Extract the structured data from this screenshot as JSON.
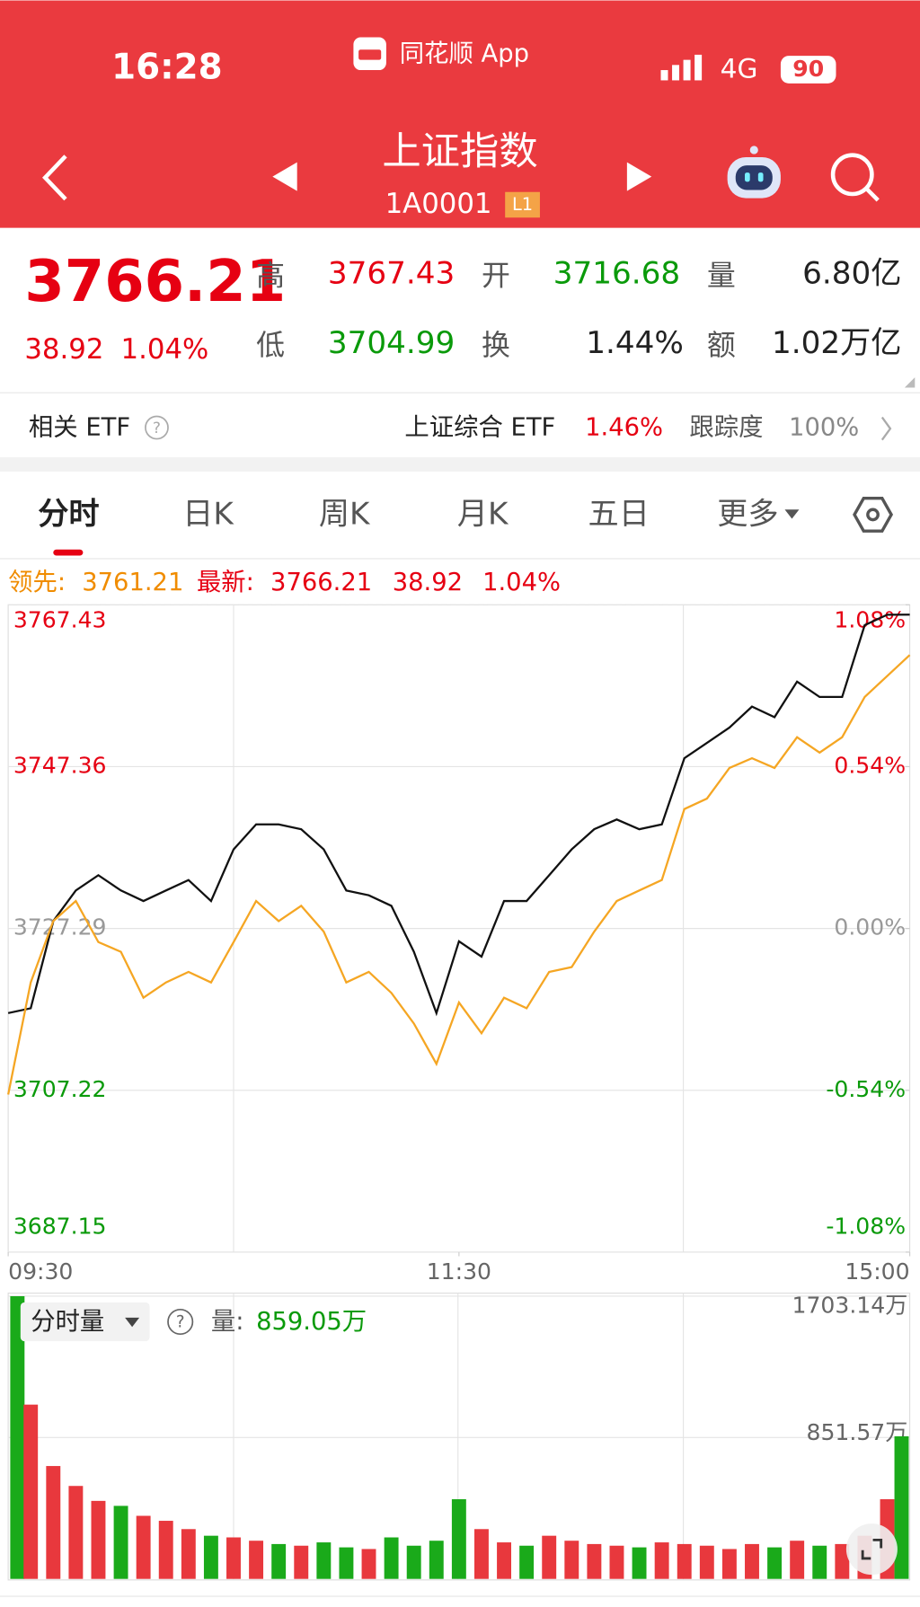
{
  "status_bar": {
    "time": "16:28",
    "app": "同花顺 App",
    "network": "4G",
    "battery": "90"
  },
  "header": {
    "title": "上证指数",
    "code": "1A0001",
    "badge": "L1"
  },
  "quote": {
    "price": "3766.21",
    "change": "38.92",
    "change_pct": "1.04%",
    "stats": [
      {
        "label": "高",
        "value": "3767.43"
      },
      {
        "label": "开",
        "value": "3716.68"
      },
      {
        "label": "量",
        "value": "6.80亿"
      },
      {
        "label": "低",
        "value": "3704.99"
      },
      {
        "label": "换",
        "value": "1.44%"
      },
      {
        "label": "额",
        "value": "1.02万亿"
      }
    ]
  },
  "etf": {
    "label": "相关 ETF",
    "name": "上证综合 ETF",
    "change_pct": "1.46%",
    "tracking_label": "跟踪度",
    "tracking_value": "100%"
  },
  "tabs": [
    "分时",
    "日K",
    "周K",
    "月K",
    "五日",
    "更多"
  ],
  "legend": {
    "lead_label": "领先:",
    "lead_value": "3761.21",
    "latest_label": "最新:",
    "latest_value": "3766.21",
    "change": "38.92",
    "change_pct": "1.04%"
  },
  "volume_header": {
    "selector": "分时量",
    "label": "量:",
    "value": "859.05万"
  },
  "chart_data": [
    {
      "type": "line",
      "x": [
        0,
        6,
        12,
        18,
        24,
        30,
        36,
        42,
        48,
        54,
        60,
        66,
        72,
        78,
        84,
        90,
        96,
        102,
        108,
        114,
        120,
        126,
        132,
        138,
        144,
        150,
        156,
        162,
        168,
        174,
        180,
        186,
        192,
        198,
        204,
        210,
        216,
        222,
        228,
        234,
        240
      ],
      "xlim": [
        0,
        240
      ],
      "xticks": [
        {
          "value": 0,
          "label": "09:30"
        },
        {
          "value": 120,
          "label": "11:30"
        },
        {
          "value": 240,
          "label": "15:00"
        }
      ],
      "ylim": [
        3687.15,
        3767.43
      ],
      "yticks": [
        3687.15,
        3707.22,
        3727.29,
        3747.36,
        3767.43
      ],
      "y2lim": [
        -1.08,
        1.08
      ],
      "y2ticks": [
        {
          "value": -1.08,
          "label": "-1.08%"
        },
        {
          "value": -0.54,
          "label": "-0.54%"
        },
        {
          "value": 0,
          "label": "0.00%"
        },
        {
          "value": 0.54,
          "label": "0.54%"
        },
        {
          "value": 1.08,
          "label": "1.08%"
        }
      ],
      "grid": true,
      "series": [
        {
          "color": "#111111",
          "values": [
            3716.8,
            3717.4,
            3728.2,
            3732.0,
            3733.9,
            3732.0,
            3730.7,
            3732.0,
            3733.3,
            3730.7,
            3737.1,
            3740.2,
            3740.2,
            3739.6,
            3737.1,
            3732.0,
            3731.4,
            3730.1,
            3724.4,
            3716.8,
            3725.7,
            3723.8,
            3730.7,
            3730.7,
            3733.9,
            3737.1,
            3739.6,
            3740.8,
            3739.6,
            3740.2,
            3748.4,
            3750.3,
            3752.2,
            3754.8,
            3753.5,
            3757.9,
            3756.0,
            3756.0,
            3764.9,
            3766.2,
            3766.21
          ]
        },
        {
          "color": "#f5a623",
          "values": [
            3706.7,
            3720.6,
            3728.2,
            3730.7,
            3725.6,
            3724.4,
            3718.7,
            3720.6,
            3721.9,
            3720.6,
            3725.6,
            3730.7,
            3728.2,
            3730.1,
            3726.9,
            3720.6,
            3721.9,
            3719.3,
            3715.5,
            3710.5,
            3718.1,
            3714.3,
            3718.7,
            3717.4,
            3721.9,
            3722.5,
            3726.9,
            3730.7,
            3732.0,
            3733.3,
            3742.1,
            3743.4,
            3747.2,
            3748.4,
            3747.2,
            3751.0,
            3749.1,
            3751.0,
            3756.0,
            3758.6,
            3761.21
          ]
        }
      ]
    },
    {
      "type": "bar",
      "ylim": [
        0,
        1703.14
      ],
      "yticks": [
        {
          "value": 851.57,
          "label": "851.57万"
        },
        {
          "value": 1703.14,
          "label": "1703.14万"
        }
      ],
      "values": [
        1703.14,
        1050,
        680,
        560,
        470,
        440,
        380,
        350,
        300,
        260,
        250,
        230,
        210,
        200,
        220,
        190,
        180,
        250,
        200,
        230,
        480,
        300,
        220,
        200,
        260,
        230,
        210,
        200,
        190,
        220,
        210,
        200,
        180,
        210,
        190,
        230,
        200,
        210,
        260,
        480,
        859.05
      ],
      "colors": [
        "#1aaa1a",
        "#e8383d",
        "#e8383d",
        "#e8383d",
        "#e8383d",
        "#1aaa1a",
        "#e8383d",
        "#e8383d",
        "#e8383d",
        "#1aaa1a",
        "#e8383d",
        "#e8383d",
        "#1aaa1a",
        "#e8383d",
        "#1aaa1a",
        "#1aaa1a",
        "#e8383d",
        "#1aaa1a",
        "#1aaa1a",
        "#1aaa1a",
        "#1aaa1a",
        "#e8383d",
        "#e8383d",
        "#1aaa1a",
        "#e8383d",
        "#e8383d",
        "#e8383d",
        "#e8383d",
        "#1aaa1a",
        "#e8383d",
        "#e8383d",
        "#e8383d",
        "#e8383d",
        "#e8383d",
        "#1aaa1a",
        "#e8383d",
        "#1aaa1a",
        "#e8383d",
        "#e8383d",
        "#e8383d",
        "#1aaa1a"
      ]
    }
  ]
}
